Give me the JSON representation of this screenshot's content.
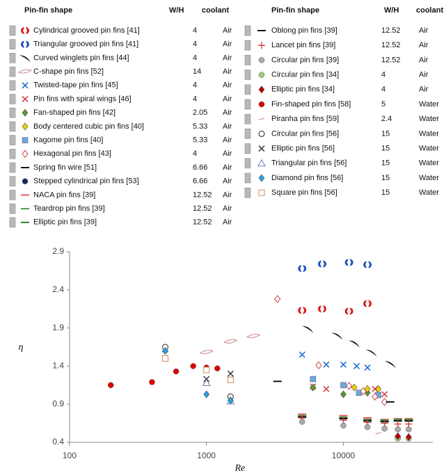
{
  "chart_data": {
    "type": "scatter",
    "header": {
      "shape": "Pin-fin shape",
      "wh": "W/H",
      "coolant": "coolant"
    },
    "xlabel": "Re",
    "ylabel": "η",
    "log_x": true,
    "xlim": [
      100,
      45000
    ],
    "xticks": [
      100,
      1000,
      10000
    ],
    "ylim": [
      0.4,
      2.9
    ],
    "yticks": [
      0.4,
      0.9,
      1.4,
      1.9,
      2.4,
      2.9
    ],
    "series": [
      {
        "name": "Cylindrical  grooved pin fins [41]",
        "wh": 4,
        "coolant": "Air",
        "marker": "grooved",
        "color": "#d7191c",
        "x": [
          5000,
          7000,
          11000,
          15000
        ],
        "values": [
          2.13,
          2.15,
          2.12,
          2.22
        ]
      },
      {
        "name": "Triangular grooved pin fins [41]",
        "wh": 4,
        "coolant": "Air",
        "marker": "grooved",
        "color": "#1f4fbf",
        "x": [
          5000,
          7000,
          11000,
          15000
        ],
        "values": [
          2.68,
          2.74,
          2.76,
          2.73
        ]
      },
      {
        "name": "Curved winglets pin fins [44]",
        "wh": 4,
        "coolant": "Air",
        "marker": "winglet",
        "color": "#111111",
        "x": [
          5500,
          9000,
          12000,
          16000,
          22000
        ],
        "values": [
          1.89,
          1.8,
          1.7,
          1.58,
          1.43
        ]
      },
      {
        "name": "C-shape pin fins [52]",
        "wh": 14,
        "coolant": "Air",
        "marker": "cshape",
        "color": "#c98a8a",
        "x": [
          1000,
          1500,
          2200
        ],
        "values": [
          1.58,
          1.72,
          1.79
        ]
      },
      {
        "name": "Twisted-tape pin fins [45]",
        "wh": 4,
        "coolant": "Air",
        "marker": "x",
        "color": "#1f6fd1",
        "x": [
          500,
          5000,
          7500,
          10000,
          12500,
          15000
        ],
        "values": [
          1.62,
          1.55,
          1.42,
          1.42,
          1.4,
          1.38
        ]
      },
      {
        "name": "Pin fins with spiral wings [46]",
        "wh": 4,
        "coolant": "Air",
        "marker": "x",
        "color": "#d44444",
        "x": [
          6000,
          7500,
          17000,
          20000
        ],
        "values": [
          1.13,
          1.1,
          1.1,
          1.03
        ]
      },
      {
        "name": "Fan-shaped pin fins [42]",
        "wh": 2.05,
        "coolant": "Air",
        "marker": "diamond",
        "color": "#5a9a2e",
        "x": [
          6000,
          10000,
          15000
        ],
        "values": [
          1.12,
          1.03,
          1.05
        ]
      },
      {
        "name": "Body centered cubic pin fins [40]",
        "wh": 5.33,
        "coolant": "Air",
        "marker": "diamond",
        "color": "#f0d000",
        "x": [
          12000,
          15000,
          18000
        ],
        "values": [
          1.12,
          1.1,
          1.1
        ]
      },
      {
        "name": "Kagome pin fins [40]",
        "wh": 5.33,
        "coolant": "Air",
        "marker": "square",
        "color": "#6fa8dc",
        "x": [
          6000,
          10000,
          13000,
          18000
        ],
        "values": [
          1.23,
          1.15,
          1.05,
          1.02
        ]
      },
      {
        "name": "Hexagonal pin fins [43]",
        "wh": 4,
        "coolant": "Air",
        "marker": "diamond-open",
        "color": "#d44444",
        "x": [
          3300,
          6600,
          11000,
          14000,
          17000,
          20000
        ],
        "values": [
          2.28,
          1.41,
          1.14,
          1.07,
          1.0,
          0.93
        ]
      },
      {
        "name": "Spring fin wire [51]",
        "wh": 6.66,
        "coolant": "Air",
        "marker": "dash",
        "color": "#111111",
        "x": [
          3300,
          22000
        ],
        "values": [
          1.2,
          0.93
        ]
      },
      {
        "name": "Stepped cylindrical pin fins [53]",
        "wh": 6.66,
        "coolant": "Air",
        "marker": "circle",
        "color": "#1a2a5a",
        "x": [
          25000
        ],
        "values": [
          0.47
        ]
      },
      {
        "name": "NACA pin fins [39]",
        "wh": 12.52,
        "coolant": "Air",
        "marker": "dash",
        "color": "#e06060",
        "x": [
          5000,
          10000,
          15000,
          20000,
          25000,
          30000
        ],
        "values": [
          0.77,
          0.75,
          0.72,
          0.7,
          0.71,
          0.71
        ]
      },
      {
        "name": "Teardrop pin fins [39]",
        "wh": 12.52,
        "coolant": "Air",
        "marker": "dash",
        "color": "#4a9a4a",
        "x": [
          5000,
          10000,
          15000,
          20000,
          25000,
          30000
        ],
        "values": [
          0.75,
          0.73,
          0.7,
          0.69,
          0.7,
          0.7
        ]
      },
      {
        "name": "Elliptic pin fins [39]",
        "wh": 12.52,
        "coolant": "Air",
        "marker": "dash",
        "color": "#2f7f2f",
        "x": [
          5000,
          10000,
          15000,
          20000,
          25000,
          30000
        ],
        "values": [
          0.74,
          0.72,
          0.69,
          0.68,
          0.69,
          0.69
        ]
      },
      {
        "name": "Oblong pin fins [39]",
        "wh": 12.52,
        "coolant": "Air",
        "marker": "dash",
        "color": "#111111",
        "x": [
          5000,
          10000,
          15000,
          20000,
          25000,
          30000
        ],
        "values": [
          0.73,
          0.71,
          0.68,
          0.67,
          0.68,
          0.68
        ]
      },
      {
        "name": "Lancet pin fins [39]",
        "wh": 12.52,
        "coolant": "Air",
        "marker": "plus",
        "color": "#d33333",
        "x": [
          5000,
          10000,
          15000,
          20000,
          25000,
          30000
        ],
        "values": [
          0.72,
          0.69,
          0.66,
          0.65,
          0.64,
          0.64
        ]
      },
      {
        "name": "Circular pin fins [39]",
        "wh": 12.52,
        "coolant": "Air",
        "marker": "circle",
        "color": "#aaaaaa",
        "x": [
          5000,
          10000,
          15000,
          20000,
          25000,
          30000
        ],
        "values": [
          0.67,
          0.62,
          0.6,
          0.58,
          0.57,
          0.57
        ]
      },
      {
        "name": "Circular pin fins [34]",
        "wh": 4,
        "coolant": "Air",
        "marker": "circle",
        "color": "#9ccf7a",
        "x": [
          25000,
          30000
        ],
        "values": [
          0.45,
          0.45
        ]
      },
      {
        "name": "Elliptic pin fins [34]",
        "wh": 4,
        "coolant": "Air",
        "marker": "diamond",
        "color": "#c00000",
        "x": [
          25000,
          30000
        ],
        "values": [
          0.48,
          0.47
        ]
      },
      {
        "name": "Fin-shaped pin fins [58]",
        "wh": 5,
        "coolant": "Water",
        "marker": "circle",
        "color": "#e00000",
        "x": [
          200,
          400,
          600,
          800,
          1000,
          1200
        ],
        "values": [
          1.15,
          1.19,
          1.33,
          1.4,
          1.38,
          1.37
        ]
      },
      {
        "name": "Piranha pin fins [59]",
        "wh": 2.4,
        "coolant": "Water",
        "marker": "sliver",
        "color": "#e9a0a0",
        "x": [
          18000
        ],
        "values": [
          0.52
        ]
      },
      {
        "name": "Circular pin fins [56]",
        "wh": 15,
        "coolant": "Water",
        "marker": "circle-open",
        "color": "#222222",
        "x": [
          500,
          1500
        ],
        "values": [
          1.65,
          1.0
        ]
      },
      {
        "name": "Elliptic pin fins [56]",
        "wh": 15,
        "coolant": "Water",
        "marker": "x",
        "color": "#444444",
        "x": [
          1000,
          1500
        ],
        "values": [
          1.23,
          1.3
        ]
      },
      {
        "name": "Triangular pin fins [56]",
        "wh": 15,
        "coolant": "Water",
        "marker": "triangle-open",
        "color": "#6a7ab0",
        "x": [
          1000,
          1500
        ],
        "values": [
          1.18,
          0.94
        ]
      },
      {
        "name": "Diamond pin fins [56]",
        "wh": 15,
        "coolant": "Water",
        "marker": "diamond",
        "color": "#29a3e0",
        "x": [
          500,
          1000,
          1500
        ],
        "values": [
          1.6,
          1.03,
          0.95
        ]
      },
      {
        "name": "Square pin fins [56]",
        "wh": 15,
        "coolant": "Water",
        "marker": "square-open",
        "color": "#d08a5a",
        "x": [
          500,
          1000,
          1500
        ],
        "values": [
          1.5,
          1.35,
          1.22
        ]
      }
    ]
  }
}
